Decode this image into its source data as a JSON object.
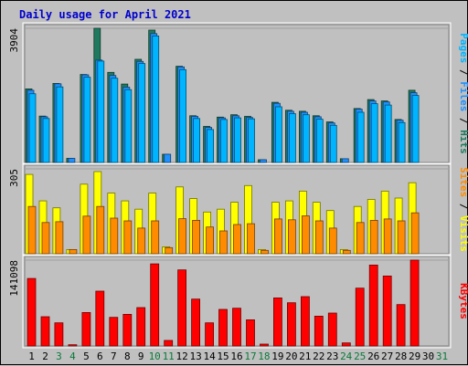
{
  "chart_data": {
    "title": "Daily usage for April 2021",
    "type": "bar",
    "days": [
      "1",
      "2",
      "3",
      "4",
      "5",
      "6",
      "7",
      "8",
      "9",
      "10",
      "11",
      "12",
      "13",
      "14",
      "15",
      "16",
      "17",
      "18",
      "19",
      "20",
      "21",
      "22",
      "23",
      "24",
      "25",
      "26",
      "27",
      "28",
      "29",
      "30",
      "31"
    ],
    "weekend_days": [
      "3",
      "4",
      "10",
      "11",
      "17",
      "18",
      "24",
      "25",
      "31"
    ],
    "colors": {
      "hits": "#1e7a5e",
      "files": "#1e90ff",
      "pages": "#00b4ff",
      "visits": "#ffff00",
      "sites": "#ff8c00",
      "kbytes": "#ff0000",
      "weekday_label": "#000000",
      "weekend_label": "#0a7a3a"
    },
    "panels": [
      {
        "id": "hits",
        "ymax_label": "3904",
        "ymax": 3904,
        "right_labels": [
          {
            "text": "Pages",
            "color": "#00b4ff"
          },
          {
            "text": " / ",
            "color": "#000000"
          },
          {
            "text": "Files",
            "color": "#1e90ff"
          },
          {
            "text": " / ",
            "color": "#000000"
          },
          {
            "text": "Hits",
            "color": "#1e7a5e"
          }
        ],
        "series": [
          {
            "name": "Hits",
            "color": "#1e7a5e",
            "values": [
              2140,
              1350,
              2300,
              120,
              2560,
              3904,
              2620,
              2280,
              3000,
              3850,
              240,
              2800,
              1360,
              1050,
              1320,
              1390,
              1340,
              80,
              1750,
              1520,
              1490,
              1360,
              1180,
              110,
              1570,
              1830,
              1790,
              1250,
              2100,
              0
            ]
          },
          {
            "name": "Files",
            "color": "#1e90ff",
            "values": [
              2100,
              1330,
              2290,
              120,
              2550,
              2980,
              2530,
              2190,
              2940,
              3750,
              240,
              2780,
              1340,
              1020,
              1300,
              1360,
              1310,
              80,
              1720,
              1490,
              1460,
              1330,
              1150,
              110,
              1550,
              1790,
              1760,
              1230,
              2030,
              0
            ]
          },
          {
            "name": "Pages",
            "color": "#00b4ff",
            "values": [
              2000,
              1280,
              2200,
              0,
              2480,
              2950,
              2450,
              2120,
              2880,
              3680,
              0,
              2700,
              1280,
              960,
              1250,
              1300,
              1270,
              0,
              1620,
              1420,
              1390,
              1260,
              1080,
              0,
              1460,
              1710,
              1670,
              1160,
              1950,
              0
            ]
          }
        ]
      },
      {
        "id": "visits",
        "ymax_label": "305",
        "ymax": 305,
        "right_labels": [
          {
            "text": "Sites",
            "color": "#ff8c00"
          },
          {
            "text": " / ",
            "color": "#000000"
          },
          {
            "text": "Visits",
            "color": "#ffff00"
          }
        ],
        "series": [
          {
            "name": "Visits",
            "color": "#ffff00",
            "values": [
              285,
              190,
              165,
              15,
              250,
              295,
              218,
              190,
              160,
              218,
              25,
              240,
              198,
              150,
              160,
              185,
              245,
              15,
              185,
              190,
              225,
              185,
              155,
              15,
              170,
              195,
              225,
              200,
              255,
              0
            ]
          },
          {
            "name": "Sites",
            "color": "#ff8c00",
            "values": [
              170,
              112,
              115,
              15,
              135,
              170,
              128,
              118,
              92,
              118,
              22,
              126,
              120,
              96,
              82,
              105,
              108,
              12,
              125,
              122,
              136,
              118,
              92,
              12,
              112,
              120,
              125,
              118,
              147,
              0
            ]
          }
        ]
      },
      {
        "id": "kbytes",
        "ymax_label": "141098",
        "ymax": 141098,
        "right_labels": [
          {
            "text": "KBytes",
            "color": "#ff0000"
          }
        ],
        "series": [
          {
            "name": "KBytes",
            "color": "#ff0000",
            "values": [
              111000,
              48000,
              38000,
              2000,
              55000,
              90000,
              47000,
              52000,
              63000,
              135000,
              9000,
              125000,
              77000,
              38000,
              60000,
              62000,
              43000,
              3000,
              79000,
              71000,
              81000,
              49000,
              54000,
              5000,
              95000,
              133000,
              115000,
              68000,
              141098,
              0
            ]
          }
        ]
      }
    ]
  }
}
